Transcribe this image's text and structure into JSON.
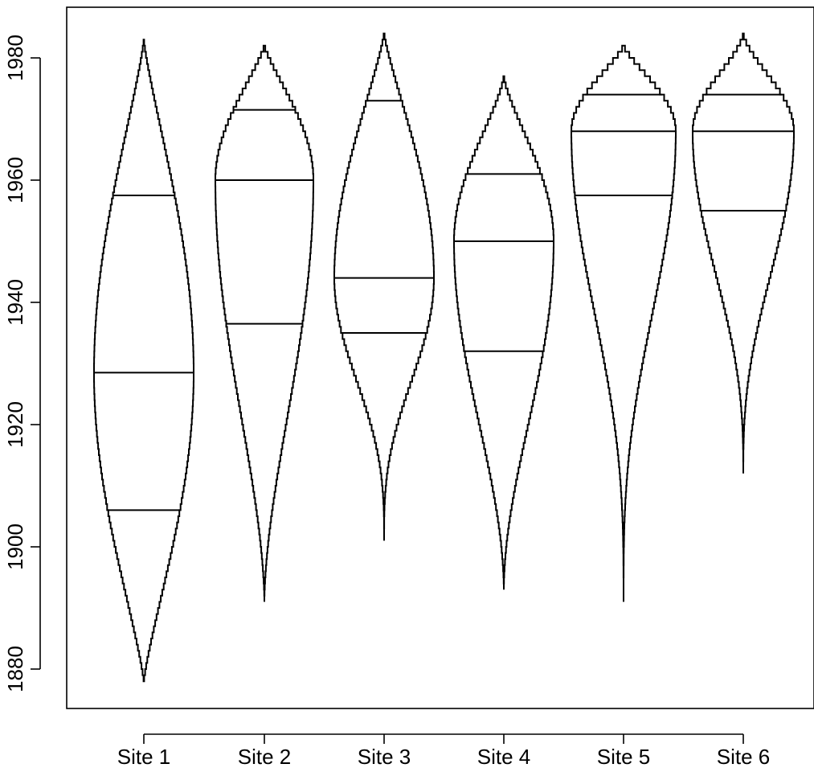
{
  "chart_data": {
    "type": "violin",
    "title": "",
    "xlabel": "",
    "ylabel": "",
    "categories": [
      "Site 1",
      "Site 2",
      "Site 3",
      "Site 4",
      "Site 5",
      "Site 6"
    ],
    "ylim": [
      1872,
      1986
    ],
    "yticks": [
      1880,
      1900,
      1920,
      1940,
      1960,
      1980
    ],
    "ytick_labels": [
      "1880",
      "1900",
      "1920",
      "1940",
      "1960",
      "1980"
    ],
    "grid": false,
    "sites": [
      {
        "label": "Site 1",
        "min": 1878,
        "q1": 1906,
        "median": 1928.5,
        "q3": 1957.5,
        "max": 1983,
        "max_half_width": 62
      },
      {
        "label": "Site 2",
        "min": 1891,
        "q1": 1936.5,
        "median": 1960,
        "q3": 1971.5,
        "max": 1982,
        "max_half_width": 61
      },
      {
        "label": "Site 3",
        "min": 1901,
        "q1": 1935,
        "median": 1944,
        "q3": 1973,
        "max": 1984,
        "max_half_width": 62
      },
      {
        "label": "Site 4",
        "min": 1893,
        "q1": 1932,
        "median": 1950,
        "q3": 1961,
        "max": 1977,
        "max_half_width": 62
      },
      {
        "label": "Site 5",
        "min": 1891,
        "q1": 1957.5,
        "median": 1968,
        "q3": 1974,
        "max": 1982,
        "max_half_width": 65
      },
      {
        "label": "Site 6",
        "min": 1912,
        "q1": 1955,
        "median": 1968,
        "q3": 1974,
        "max": 1984,
        "max_half_width": 63
      }
    ]
  }
}
